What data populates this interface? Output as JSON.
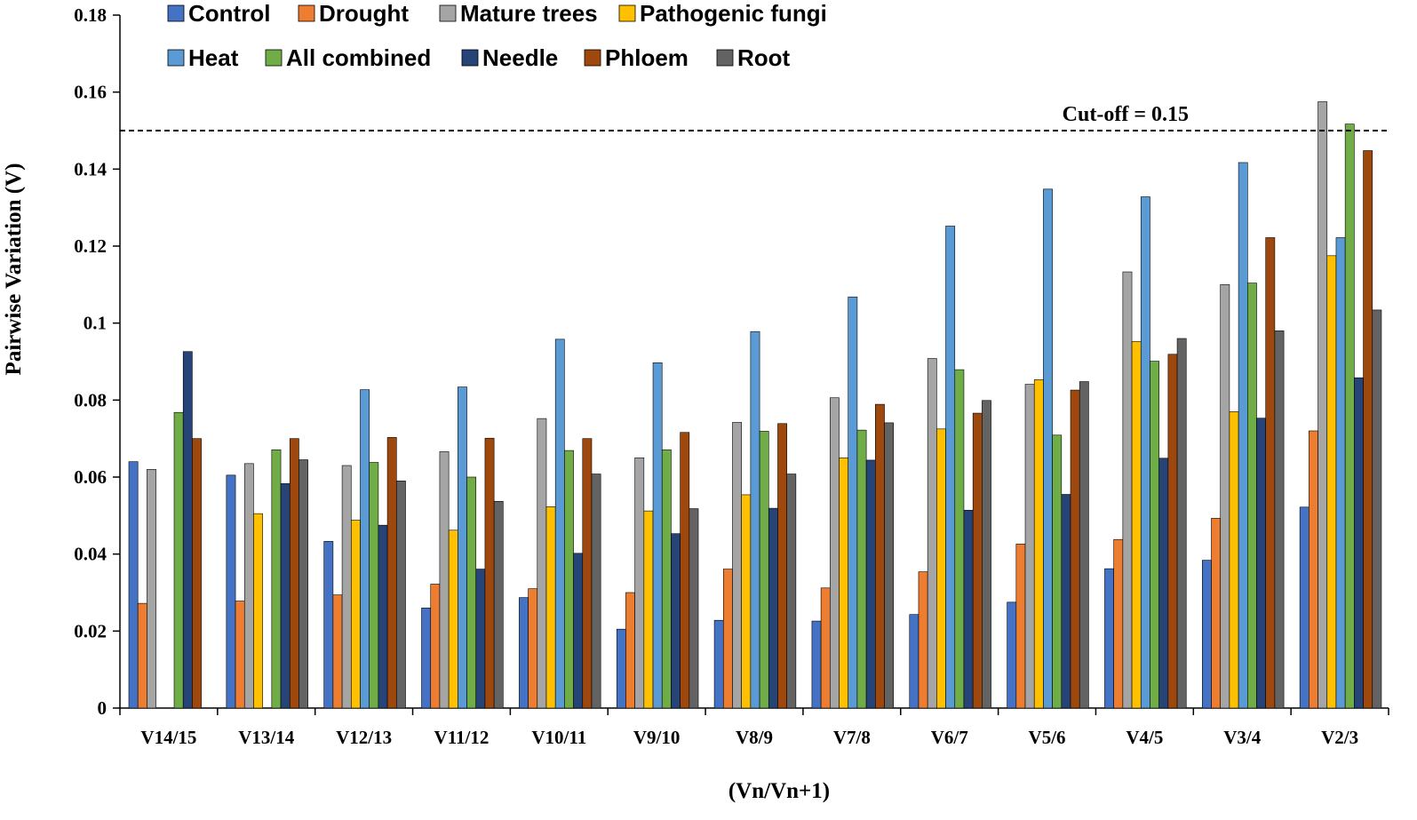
{
  "chart_data": {
    "type": "bar",
    "title": "",
    "xlabel": "(Vn/Vn+1)",
    "ylabel": "Pairwise Variation (V)",
    "ylim": [
      0,
      0.18
    ],
    "yticks": [
      0,
      0.02,
      0.04,
      0.06,
      0.08,
      0.1,
      0.12,
      0.14,
      0.16,
      0.18
    ],
    "ytick_labels": [
      "0",
      "0.02",
      "0.04",
      "0.06",
      "0.08",
      "0.1",
      "0.12",
      "0.14",
      "0.16",
      "0.18"
    ],
    "grid": false,
    "legend_position": "top",
    "categories": [
      "V14/15",
      "V13/14",
      "V12/13",
      "V11/12",
      "V10/11",
      "V9/10",
      "V8/9",
      "V7/8",
      "V6/7",
      "V5/6",
      "V4/5",
      "V3/4",
      "V2/3"
    ],
    "series": [
      {
        "name": "Control",
        "color": "#4472C4",
        "values": [
          0.064,
          0.0605,
          0.0433,
          0.026,
          0.0287,
          0.0205,
          0.0228,
          0.0226,
          0.0243,
          0.0275,
          0.0362,
          0.0384,
          0.0522
        ]
      },
      {
        "name": "Drought",
        "color": "#ED7D31",
        "values": [
          0.0272,
          0.0278,
          0.0294,
          0.0322,
          0.031,
          0.03,
          0.0361,
          0.0312,
          0.0354,
          0.0426,
          0.0438,
          0.0493,
          0.072
        ]
      },
      {
        "name": "Mature trees",
        "color": "#A5A5A5",
        "values": [
          0.062,
          0.0635,
          0.063,
          0.0666,
          0.0752,
          0.065,
          0.0742,
          0.0806,
          0.0908,
          0.0841,
          0.1133,
          0.11,
          0.1575
        ]
      },
      {
        "name": "Pathogenic fungi",
        "color": "#FFC000",
        "values": [
          null,
          0.0505,
          0.0488,
          0.0462,
          0.0523,
          0.0512,
          0.0554,
          0.065,
          0.0725,
          0.0853,
          0.0952,
          0.077,
          0.1175
        ]
      },
      {
        "name": "Heat",
        "color": "#5B9BD5",
        "values": [
          null,
          null,
          0.0827,
          0.0834,
          0.0958,
          0.0897,
          0.0978,
          0.1068,
          0.1252,
          0.1348,
          0.1328,
          0.1417,
          0.1222
        ]
      },
      {
        "name": "All combined",
        "color": "#70AD47",
        "values": [
          0.0768,
          0.0671,
          0.0638,
          0.06,
          0.0669,
          0.0671,
          0.0719,
          0.0722,
          0.0879,
          0.0709,
          0.0901,
          0.1104,
          0.1517
        ]
      },
      {
        "name": "Needle",
        "color": "#264478",
        "values": [
          0.0926,
          0.0583,
          0.0475,
          0.0361,
          0.0402,
          0.0453,
          0.0519,
          0.0644,
          0.0514,
          0.0555,
          0.0649,
          0.0753,
          0.0858
        ]
      },
      {
        "name": "Phloem",
        "color": "#9E480E",
        "values": [
          0.07,
          0.07,
          0.0703,
          0.0701,
          0.07,
          0.0716,
          0.0739,
          0.0789,
          0.0766,
          0.0826,
          0.0919,
          0.1222,
          0.1448
        ]
      },
      {
        "name": "Root",
        "color": "#636363",
        "values": [
          null,
          0.0645,
          0.059,
          0.0537,
          0.0608,
          0.0518,
          0.0608,
          0.0741,
          0.0799,
          0.0848,
          0.096,
          0.098,
          0.1034
        ]
      }
    ],
    "reference_line": {
      "value": 0.15,
      "label": "Cut-off = 0.15",
      "style": "dashed"
    }
  }
}
